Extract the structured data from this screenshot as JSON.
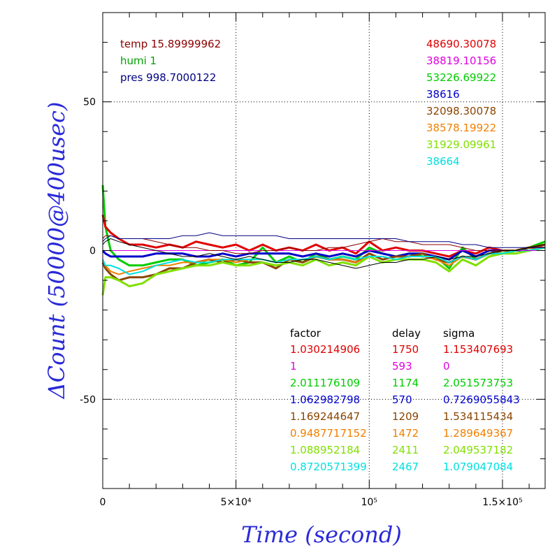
{
  "chart_data": {
    "type": "line",
    "xlabel": "Time (second)",
    "ylabel": "ΔCount (50000@400usec)",
    "xlim": [
      0,
      166000
    ],
    "ylim": [
      -80,
      80
    ],
    "x_ticks": [
      {
        "value": 0,
        "label": "0"
      },
      {
        "value": 50000,
        "label": "5×10⁴"
      },
      {
        "value": 100000,
        "label": "10⁵"
      },
      {
        "value": 150000,
        "label": "1.5×10⁵"
      }
    ],
    "y_ticks": [
      {
        "value": 50,
        "label": "50"
      },
      {
        "value": 0,
        "label": "0"
      },
      {
        "value": -50,
        "label": "-50"
      }
    ],
    "grid": "dotted, at labelled ticks",
    "env_labels": [
      {
        "text": "temp 15.89999962",
        "color": "#8b0000"
      },
      {
        "text": "humi 1",
        "color": "#00a000"
      },
      {
        "text": "pres 998.7000122",
        "color": "#000080"
      }
    ],
    "means": [
      {
        "text": "48690.30078",
        "color": "#e00000"
      },
      {
        "text": "38819.10156",
        "color": "#e000e0"
      },
      {
        "text": "53226.69922",
        "color": "#00cc00"
      },
      {
        "text": "38616",
        "color": "#0000cc"
      },
      {
        "text": "32098.30078",
        "color": "#8b4500"
      },
      {
        "text": "38578.19922",
        "color": "#f08000"
      },
      {
        "text": "31929.09961",
        "color": "#80e000"
      },
      {
        "text": "38664",
        "color": "#00e0e0"
      }
    ],
    "table": {
      "headers": [
        "factor",
        "delay",
        "sigma"
      ],
      "rows": [
        {
          "factor": "1.030214906",
          "delay": "1750",
          "sigma": "1.153407693",
          "color": "#e00000"
        },
        {
          "factor": "1",
          "delay": "593",
          "sigma": "0",
          "color": "#e000e0"
        },
        {
          "factor": "2.011176109",
          "delay": "1174",
          "sigma": "2.051573753",
          "color": "#00cc00"
        },
        {
          "factor": "1.062982798",
          "delay": "570",
          "sigma": "0.7269055843",
          "color": "#0000cc"
        },
        {
          "factor": "1.169244647",
          "delay": "1209",
          "sigma": "1.534115434",
          "color": "#8b4500"
        },
        {
          "factor": "0.9487717152",
          "delay": "1472",
          "sigma": "1.289649367",
          "color": "#f08000"
        },
        {
          "factor": "1.088952184",
          "delay": "2411",
          "sigma": "2.049537182",
          "color": "#80e000"
        },
        {
          "factor": "0.8720571399",
          "delay": "2467",
          "sigma": "1.079047084",
          "color": "#00e0e0"
        }
      ]
    },
    "x": [
      0,
      1000,
      3000,
      6000,
      10000,
      15000,
      20000,
      25000,
      30000,
      35000,
      40000,
      45000,
      50000,
      55000,
      60000,
      65000,
      70000,
      75000,
      80000,
      85000,
      90000,
      95000,
      100000,
      105000,
      110000,
      115000,
      120000,
      125000,
      130000,
      135000,
      140000,
      145000,
      150000,
      155000,
      160000,
      166000
    ],
    "series": [
      {
        "color": "#00cc00",
        "width": 3,
        "values": [
          22,
          8,
          0,
          -3,
          -5,
          -5,
          -4,
          -3,
          -3,
          -5,
          -4,
          -3,
          -5,
          -4,
          1,
          -4,
          -2,
          -4,
          -1,
          -3,
          -2,
          -3,
          1,
          -1,
          -2,
          -1,
          -2,
          -2,
          -6,
          1,
          -3,
          -1,
          -1,
          0,
          1,
          3
        ]
      },
      {
        "color": "#e00000",
        "width": 3,
        "values": [
          12,
          8,
          6,
          4,
          2,
          2,
          1,
          2,
          1,
          3,
          2,
          1,
          2,
          0,
          2,
          0,
          1,
          0,
          2,
          0,
          1,
          -1,
          3,
          0,
          1,
          0,
          0,
          -1,
          -2,
          0,
          -1,
          1,
          0,
          0,
          1,
          1
        ]
      },
      {
        "color": "#0000cc",
        "width": 3,
        "values": [
          0,
          -1,
          -2,
          -2,
          -2,
          -2,
          -1,
          -1,
          -1,
          -2,
          -2,
          -1,
          -2,
          -1,
          -1,
          -1,
          -1,
          -2,
          -1,
          -2,
          -1,
          -2,
          0,
          -1,
          -2,
          -1,
          -1,
          -2,
          -3,
          0,
          -2,
          0,
          0,
          0,
          0,
          1
        ]
      },
      {
        "color": "#8b4500",
        "width": 3,
        "values": [
          -4,
          -6,
          -8,
          -10,
          -9,
          -9,
          -8,
          -6,
          -6,
          -4,
          -3,
          -4,
          -3,
          -4,
          -4,
          -6,
          -3,
          -4,
          -2,
          -3,
          -3,
          -4,
          -1,
          -3,
          -2,
          -2,
          -1,
          -3,
          -4,
          -2,
          -3,
          -1,
          0,
          0,
          1,
          2
        ]
      },
      {
        "color": "#f08000",
        "width": 2,
        "values": [
          -3,
          -5,
          -7,
          -8,
          -7,
          -6,
          -5,
          -5,
          -4,
          -4,
          -3,
          -3,
          -4,
          -3,
          -3,
          -4,
          -3,
          -3,
          -2,
          -3,
          -3,
          -4,
          -2,
          -2,
          -3,
          -2,
          -2,
          -3,
          -5,
          -2,
          -3,
          -1,
          -1,
          0,
          0,
          1
        ]
      },
      {
        "color": "#80e000",
        "width": 3,
        "values": [
          -15,
          -9,
          -9,
          -10,
          -12,
          -11,
          -8,
          -7,
          -6,
          -5,
          -5,
          -4,
          -5,
          -5,
          -4,
          -5,
          -4,
          -5,
          -3,
          -5,
          -4,
          -5,
          -2,
          -4,
          -3,
          -3,
          -3,
          -4,
          -7,
          -3,
          -5,
          -2,
          -1,
          -1,
          0,
          1
        ]
      },
      {
        "color": "#00e0e0",
        "width": 2,
        "values": [
          -3,
          -5,
          -5,
          -6,
          -8,
          -7,
          -5,
          -4,
          -3,
          -4,
          -4,
          -3,
          -3,
          -3,
          -3,
          -4,
          -3,
          -3,
          -2,
          -3,
          -2,
          -3,
          -2,
          -2,
          -3,
          -2,
          -2,
          -2,
          -4,
          -2,
          -3,
          -1,
          -1,
          0,
          0,
          1
        ]
      },
      {
        "color": "#e000e0",
        "width": 1,
        "values": [
          0,
          0,
          0,
          0,
          0,
          0,
          0,
          0,
          0,
          0,
          0,
          0,
          0,
          0,
          0,
          0,
          0,
          0,
          0,
          0,
          0,
          0,
          0,
          0,
          0,
          0,
          0,
          0,
          0,
          0,
          0,
          0,
          0,
          0,
          0,
          0
        ]
      },
      {
        "color": "#8b0000",
        "width": 1,
        "values": [
          4,
          5,
          5,
          4,
          4,
          4,
          3,
          2,
          1,
          1,
          0,
          0,
          -1,
          -1,
          0,
          0,
          1,
          0,
          0,
          1,
          1,
          2,
          3,
          4,
          3,
          3,
          2,
          2,
          2,
          1,
          0,
          0,
          0,
          0,
          1,
          1
        ]
      },
      {
        "color": "#000080",
        "width": 1,
        "values": [
          3,
          4,
          5,
          4,
          4,
          4,
          4,
          4,
          5,
          5,
          6,
          5,
          5,
          5,
          5,
          5,
          4,
          4,
          4,
          4,
          4,
          4,
          4,
          4,
          4,
          3,
          3,
          3,
          3,
          2,
          2,
          1,
          1,
          1,
          1,
          1
        ]
      },
      {
        "color": "#000000",
        "width": 1,
        "values": [
          2,
          3,
          4,
          3,
          2,
          1,
          0,
          -1,
          -2,
          -2,
          -1,
          -2,
          -3,
          -2,
          -3,
          -4,
          -4,
          -3,
          -3,
          -4,
          -5,
          -6,
          -5,
          -4,
          -4,
          -3,
          -3,
          -2,
          -3,
          -2,
          -2,
          -1,
          0,
          0,
          1,
          2
        ]
      }
    ]
  }
}
